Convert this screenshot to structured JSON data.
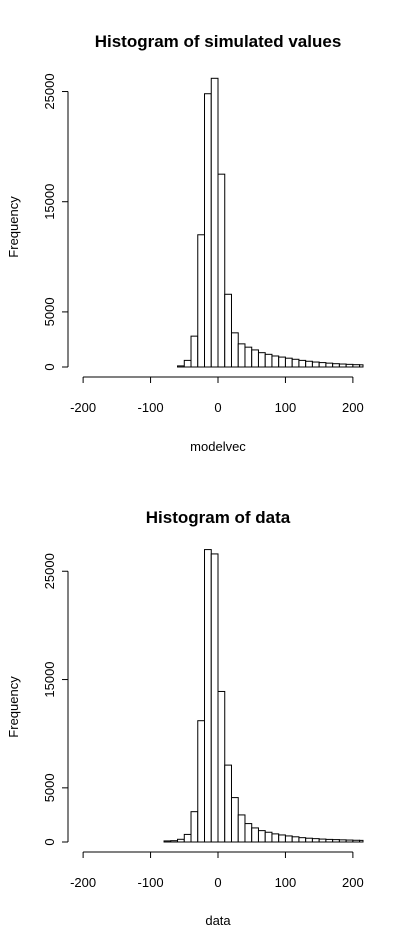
{
  "chart_data": [
    {
      "type": "bar",
      "title": "Histogram of simulated values",
      "xlabel": "modelvec",
      "ylabel": "Frequency",
      "xlim": [
        -215,
        215
      ],
      "ylim": [
        0,
        26500
      ],
      "x_ticks": [
        -200,
        -100,
        0,
        100,
        200
      ],
      "y_ticks": [
        0,
        5000,
        15000,
        25000
      ],
      "bin_width": 10,
      "bins": [
        {
          "x0": -60,
          "x1": -50,
          "count": 100
        },
        {
          "x0": -50,
          "x1": -40,
          "count": 600
        },
        {
          "x0": -40,
          "x1": -30,
          "count": 2800
        },
        {
          "x0": -30,
          "x1": -20,
          "count": 12000
        },
        {
          "x0": -20,
          "x1": -10,
          "count": 24800
        },
        {
          "x0": -10,
          "x1": 0,
          "count": 26200
        },
        {
          "x0": 0,
          "x1": 10,
          "count": 17500
        },
        {
          "x0": 10,
          "x1": 20,
          "count": 6600
        },
        {
          "x0": 20,
          "x1": 30,
          "count": 3100
        },
        {
          "x0": 30,
          "x1": 40,
          "count": 2100
        },
        {
          "x0": 40,
          "x1": 50,
          "count": 1800
        },
        {
          "x0": 50,
          "x1": 60,
          "count": 1550
        },
        {
          "x0": 60,
          "x1": 70,
          "count": 1300
        },
        {
          "x0": 70,
          "x1": 80,
          "count": 1150
        },
        {
          "x0": 80,
          "x1": 90,
          "count": 1000
        },
        {
          "x0": 90,
          "x1": 100,
          "count": 900
        },
        {
          "x0": 100,
          "x1": 110,
          "count": 800
        },
        {
          "x0": 110,
          "x1": 120,
          "count": 700
        },
        {
          "x0": 120,
          "x1": 130,
          "count": 600
        },
        {
          "x0": 130,
          "x1": 140,
          "count": 520
        },
        {
          "x0": 140,
          "x1": 150,
          "count": 450
        },
        {
          "x0": 150,
          "x1": 160,
          "count": 400
        },
        {
          "x0": 160,
          "x1": 170,
          "count": 350
        },
        {
          "x0": 170,
          "x1": 180,
          "count": 300
        },
        {
          "x0": 180,
          "x1": 190,
          "count": 270
        },
        {
          "x0": 190,
          "x1": 200,
          "count": 240
        },
        {
          "x0": 200,
          "x1": 210,
          "count": 210
        },
        {
          "x0": 210,
          "x1": 215,
          "count": 200
        }
      ]
    },
    {
      "type": "bar",
      "title": "Histogram of data",
      "xlabel": "data",
      "ylabel": "Frequency",
      "xlim": [
        -215,
        215
      ],
      "ylim": [
        0,
        26500
      ],
      "x_ticks": [
        -200,
        -100,
        0,
        100,
        200
      ],
      "y_ticks": [
        0,
        5000,
        15000,
        25000
      ],
      "bin_width": 10,
      "bins": [
        {
          "x0": -80,
          "x1": -70,
          "count": 100
        },
        {
          "x0": -70,
          "x1": -60,
          "count": 120
        },
        {
          "x0": -60,
          "x1": -50,
          "count": 250
        },
        {
          "x0": -50,
          "x1": -40,
          "count": 700
        },
        {
          "x0": -40,
          "x1": -30,
          "count": 2800
        },
        {
          "x0": -30,
          "x1": -20,
          "count": 11200
        },
        {
          "x0": -20,
          "x1": -10,
          "count": 27000
        },
        {
          "x0": -10,
          "x1": 0,
          "count": 26600
        },
        {
          "x0": 0,
          "x1": 10,
          "count": 13900
        },
        {
          "x0": 10,
          "x1": 20,
          "count": 7100
        },
        {
          "x0": 20,
          "x1": 30,
          "count": 4100
        },
        {
          "x0": 30,
          "x1": 40,
          "count": 2500
        },
        {
          "x0": 40,
          "x1": 50,
          "count": 1700
        },
        {
          "x0": 50,
          "x1": 60,
          "count": 1300
        },
        {
          "x0": 60,
          "x1": 70,
          "count": 1050
        },
        {
          "x0": 70,
          "x1": 80,
          "count": 900
        },
        {
          "x0": 80,
          "x1": 90,
          "count": 750
        },
        {
          "x0": 90,
          "x1": 100,
          "count": 650
        },
        {
          "x0": 100,
          "x1": 110,
          "count": 560
        },
        {
          "x0": 110,
          "x1": 120,
          "count": 480
        },
        {
          "x0": 120,
          "x1": 130,
          "count": 400
        },
        {
          "x0": 130,
          "x1": 140,
          "count": 350
        },
        {
          "x0": 140,
          "x1": 150,
          "count": 310
        },
        {
          "x0": 150,
          "x1": 160,
          "count": 270
        },
        {
          "x0": 160,
          "x1": 170,
          "count": 240
        },
        {
          "x0": 170,
          "x1": 180,
          "count": 220
        },
        {
          "x0": 180,
          "x1": 190,
          "count": 200
        },
        {
          "x0": 190,
          "x1": 200,
          "count": 180
        },
        {
          "x0": 200,
          "x1": 210,
          "count": 160
        },
        {
          "x0": 210,
          "x1": 215,
          "count": 150
        }
      ]
    }
  ]
}
